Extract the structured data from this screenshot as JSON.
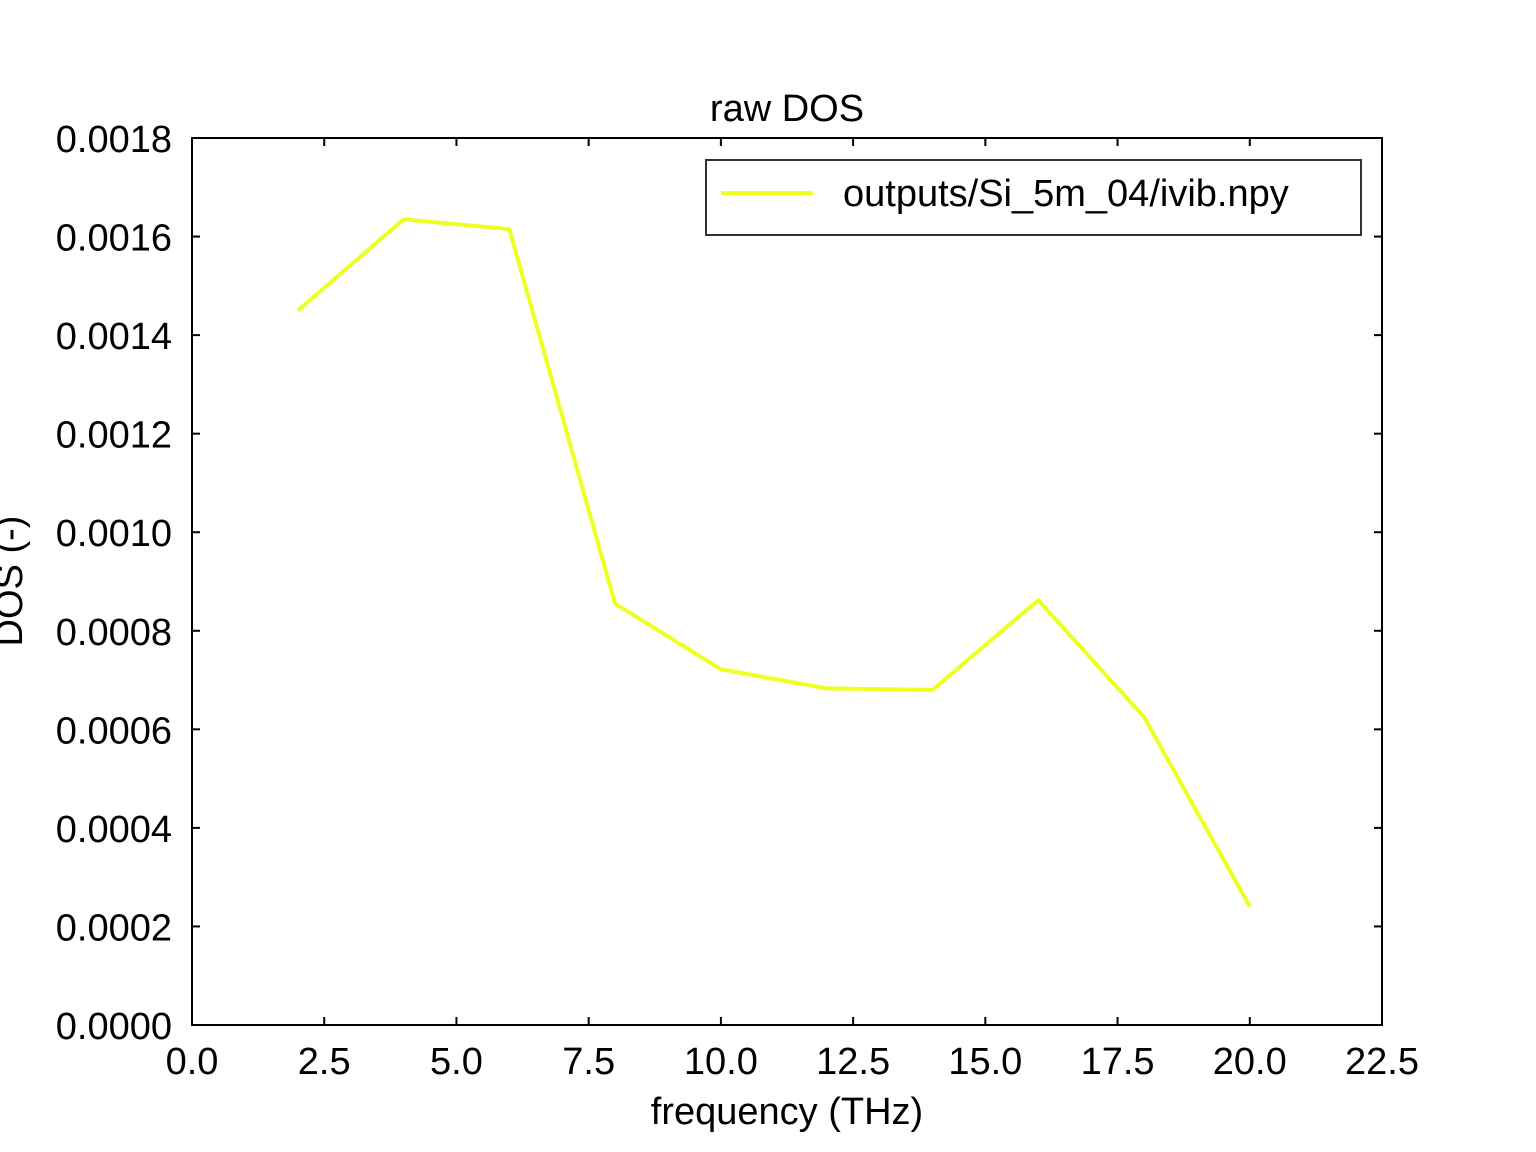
{
  "chart_data": {
    "type": "line",
    "title": "raw DOS",
    "xlabel": "frequency (THz)",
    "ylabel": "DOS (-)",
    "xlim": [
      0.0,
      22.5
    ],
    "ylim": [
      0.0,
      0.0018
    ],
    "x_ticks": [
      "0.0",
      "2.5",
      "5.0",
      "7.5",
      "10.0",
      "12.5",
      "15.0",
      "17.5",
      "20.0",
      "22.5"
    ],
    "y_ticks": [
      "0.0000",
      "0.0002",
      "0.0004",
      "0.0006",
      "0.0008",
      "0.0010",
      "0.0012",
      "0.0014",
      "0.0016",
      "0.0018"
    ],
    "grid": false,
    "legend_position": "top-right",
    "series": [
      {
        "name": "outputs/Si_5m_04/ivib.npy",
        "color": "#eeff22",
        "x": [
          2,
          4,
          6,
          8,
          10,
          12,
          14,
          16,
          18,
          20
        ],
        "y": [
          0.00145,
          0.001635,
          0.001615,
          0.000855,
          0.000722,
          0.000683,
          0.00068,
          0.000862,
          0.000625,
          0.00024
        ]
      }
    ]
  }
}
